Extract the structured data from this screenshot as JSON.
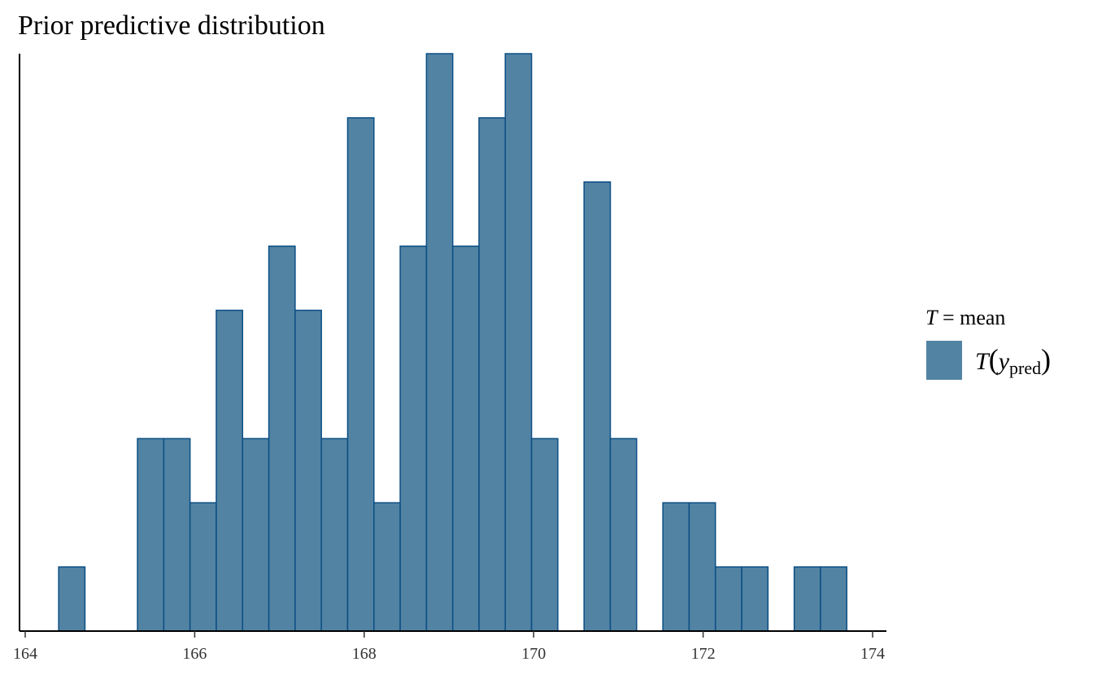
{
  "chart_data": {
    "type": "bar",
    "title": "Prior predictive distribution",
    "xlabel": "",
    "ylabel": "",
    "xlim": [
      164,
      174
    ],
    "x_ticks": [
      164,
      166,
      168,
      170,
      172,
      174
    ],
    "bin_width": 0.31,
    "bins": [
      {
        "x": 164.55,
        "count": 1
      },
      {
        "x": 164.86,
        "count": 0
      },
      {
        "x": 165.17,
        "count": 0
      },
      {
        "x": 165.48,
        "count": 3
      },
      {
        "x": 165.79,
        "count": 3
      },
      {
        "x": 166.1,
        "count": 2
      },
      {
        "x": 166.41,
        "count": 5
      },
      {
        "x": 166.72,
        "count": 3
      },
      {
        "x": 167.03,
        "count": 6
      },
      {
        "x": 167.34,
        "count": 5
      },
      {
        "x": 167.65,
        "count": 3
      },
      {
        "x": 167.96,
        "count": 8
      },
      {
        "x": 168.27,
        "count": 2
      },
      {
        "x": 168.58,
        "count": 6
      },
      {
        "x": 168.89,
        "count": 9
      },
      {
        "x": 169.2,
        "count": 6
      },
      {
        "x": 169.51,
        "count": 8
      },
      {
        "x": 169.82,
        "count": 9
      },
      {
        "x": 170.13,
        "count": 3
      },
      {
        "x": 170.44,
        "count": 0
      },
      {
        "x": 170.75,
        "count": 7
      },
      {
        "x": 171.06,
        "count": 3
      },
      {
        "x": 171.37,
        "count": 0
      },
      {
        "x": 171.68,
        "count": 2
      },
      {
        "x": 171.99,
        "count": 2
      },
      {
        "x": 172.3,
        "count": 1
      },
      {
        "x": 172.61,
        "count": 1
      },
      {
        "x": 172.92,
        "count": 0
      },
      {
        "x": 173.23,
        "count": 1
      },
      {
        "x": 173.54,
        "count": 1
      }
    ],
    "ylim": [
      0,
      9
    ],
    "fill_color": "#5283a3",
    "stroke_color": "#0b4e84",
    "legend": {
      "title_T": "T",
      "title_rest": " = mean",
      "label_T": "T",
      "label_y": "y",
      "label_sub": "pred",
      "placement": "right"
    }
  }
}
